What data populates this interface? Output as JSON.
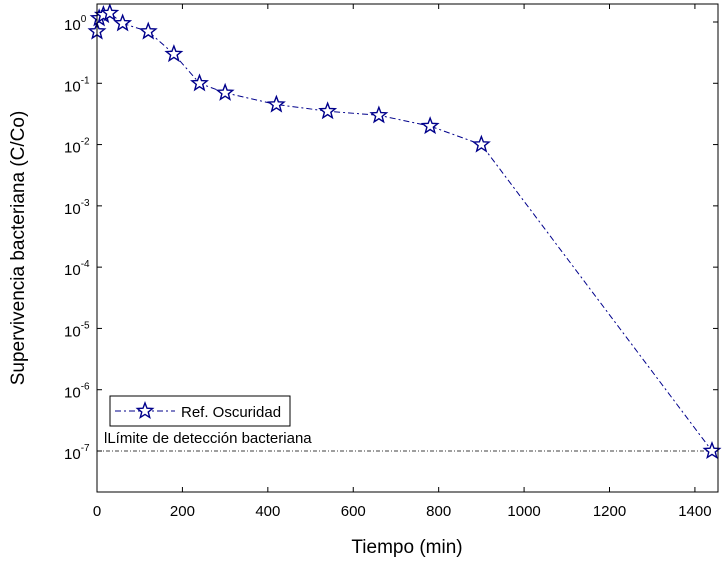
{
  "chart_data": {
    "type": "line",
    "xlabel": "Tiempo (min)",
    "ylabel": "Supervivencia bacteriana (C/Co)",
    "xlim": [
      0,
      1450
    ],
    "ylim": [
      1e-07,
      1.5
    ],
    "yscale": "log",
    "xticks": [
      0,
      200,
      400,
      600,
      800,
      1000,
      1200,
      1400
    ],
    "xtick_labels": [
      "0",
      "200",
      "400",
      "600",
      "800",
      "1000",
      "1200",
      "1400"
    ],
    "yticks": [
      {
        "value": 1e-07,
        "base": "10",
        "exp": "-7"
      },
      {
        "value": 1e-06,
        "base": "10",
        "exp": "-6"
      },
      {
        "value": 1e-05,
        "base": "10",
        "exp": "-5"
      },
      {
        "value": 0.0001,
        "base": "10",
        "exp": "-4"
      },
      {
        "value": 0.001,
        "base": "10",
        "exp": "-3"
      },
      {
        "value": 0.01,
        "base": "10",
        "exp": "-2"
      },
      {
        "value": 0.1,
        "base": "10",
        "exp": "-1"
      },
      {
        "value": 1,
        "base": "10",
        "exp": "0"
      }
    ],
    "grid": false,
    "legend_position": "lower-left",
    "series": [
      {
        "name": "Ref. Oscuridad",
        "color": "#00008B",
        "line_style": "dash-dot",
        "marker": "star",
        "x": [
          0,
          5,
          15,
          30,
          60,
          120,
          180,
          240,
          300,
          420,
          540,
          660,
          780,
          900,
          1440
        ],
        "y": [
          0.7,
          1.15,
          1.3,
          1.4,
          0.95,
          0.7,
          0.3,
          0.1,
          0.07,
          0.045,
          0.035,
          0.03,
          0.02,
          0.01,
          1e-07
        ]
      }
    ],
    "annotations": [
      {
        "text": "lLímite de detección bacteriana",
        "y": 1e-07,
        "line_style": "dotted"
      }
    ]
  }
}
